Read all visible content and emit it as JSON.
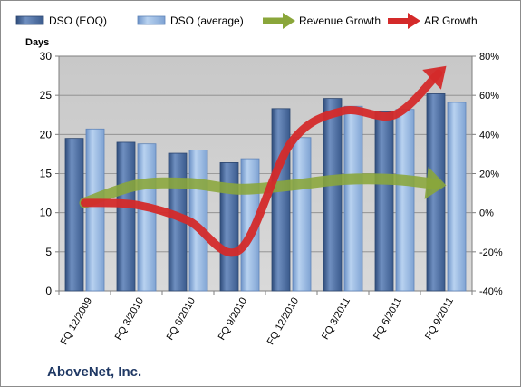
{
  "chart_data": {
    "type": "bar",
    "company": "AboveNet, Inc.",
    "y_left_title": "Days",
    "categories": [
      "FQ 12/2009",
      "FQ 3/2010",
      "FQ 6/2010",
      "FQ 9/2010",
      "FQ 12/2010",
      "FQ 3/2011",
      "FQ 6/2011",
      "FQ 9/2011"
    ],
    "series": [
      {
        "name": "DSO (EOQ)",
        "type": "bar",
        "axis": "left",
        "values": [
          19.5,
          19.0,
          17.6,
          16.4,
          23.3,
          24.6,
          22.9,
          25.2
        ],
        "color": "#4f6fa0"
      },
      {
        "name": "DSO (average)",
        "type": "bar",
        "axis": "left",
        "values": [
          20.7,
          18.8,
          18.0,
          16.9,
          19.6,
          23.6,
          23.2,
          24.1
        ],
        "color": "#8eb4e0"
      },
      {
        "name": "Revenue Growth",
        "type": "line",
        "axis": "right",
        "values": [
          5,
          14,
          15,
          12,
          14,
          17,
          17,
          14
        ],
        "color": "#8aa63a"
      },
      {
        "name": "AR Growth",
        "type": "line",
        "axis": "right",
        "values": [
          5,
          4,
          -4,
          -19,
          36,
          52,
          50,
          75
        ],
        "color": "#d42a2a"
      }
    ],
    "left_axis": {
      "min": 0,
      "max": 30,
      "step": 5,
      "ticks": [
        "0",
        "5",
        "10",
        "15",
        "20",
        "25",
        "30"
      ]
    },
    "right_axis": {
      "min": -40,
      "max": 80,
      "step": 20,
      "ticks": [
        "-40%",
        "-20%",
        "0%",
        "20%",
        "40%",
        "60%",
        "80%"
      ]
    },
    "legend_position": "top",
    "grid": true
  }
}
